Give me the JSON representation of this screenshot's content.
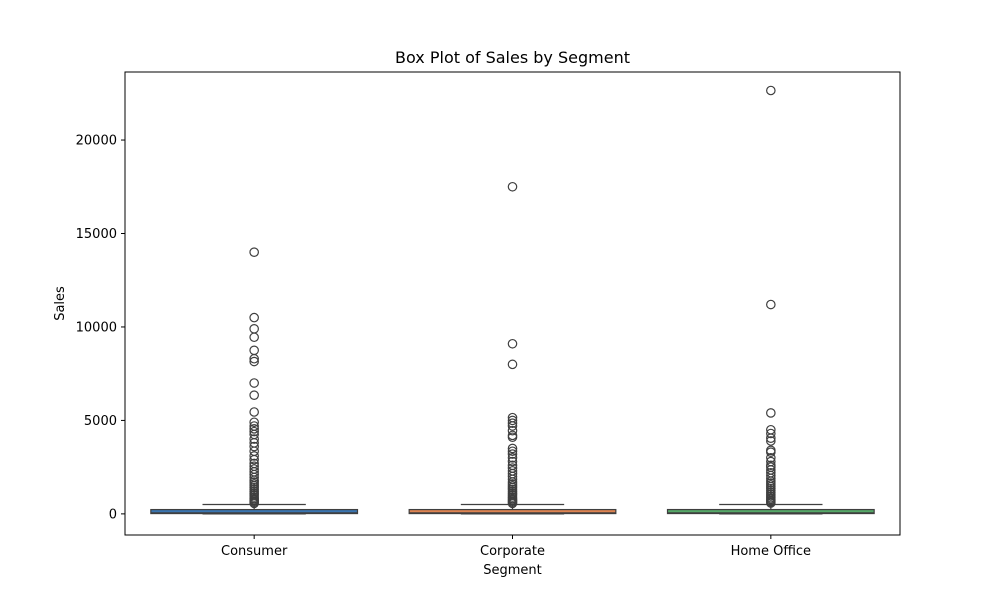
{
  "chart_data": {
    "type": "box",
    "title": "Box Plot of Sales by Segment",
    "xlabel": "Segment",
    "ylabel": "Sales",
    "ylim": [
      -1130,
      23640
    ],
    "yticks": [
      0,
      5000,
      10000,
      15000,
      20000
    ],
    "grid": false,
    "legend": "none",
    "categories": [
      "Consumer",
      "Corporate",
      "Home Office"
    ],
    "colors": [
      "#3a75b0",
      "#dd8452",
      "#55a868"
    ],
    "series": [
      {
        "category": "Consumer",
        "whisker_low": 0,
        "q1": 17,
        "median": 54,
        "q3": 210,
        "whisker_high": 500,
        "outliers": [
          14000,
          10500,
          9900,
          9450,
          8750,
          8300,
          8150,
          7000,
          6350,
          5450,
          4900,
          4700,
          4550,
          4400,
          4250,
          4000,
          3800,
          3600,
          3350,
          3100,
          2900,
          2700,
          2550,
          2400,
          2250,
          2100,
          1950,
          1800,
          1700,
          1600,
          1500,
          1400,
          1300,
          1200,
          1100,
          1000,
          900,
          820,
          750,
          680,
          620,
          560
        ]
      },
      {
        "category": "Corporate",
        "whisker_low": 0,
        "q1": 17,
        "median": 54,
        "q3": 220,
        "whisker_high": 500,
        "outliers": [
          17500,
          9100,
          8000,
          5150,
          5000,
          4850,
          4700,
          4450,
          4200,
          4100,
          3500,
          3350,
          3200,
          3000,
          2800,
          2600,
          2450,
          2300,
          2150,
          2000,
          1850,
          1700,
          1600,
          1500,
          1400,
          1300,
          1200,
          1100,
          1000,
          900,
          820,
          750,
          680,
          620,
          560
        ]
      },
      {
        "category": "Home Office",
        "whisker_low": 0,
        "q1": 18,
        "median": 57,
        "q3": 225,
        "whisker_high": 500,
        "outliers": [
          22650,
          11200,
          5400,
          4500,
          4300,
          4050,
          3900,
          3400,
          3300,
          3000,
          2800,
          2600,
          2500,
          2350,
          2200,
          2050,
          1900,
          1750,
          1650,
          1550,
          1450,
          1350,
          1250,
          1150,
          1050,
          950,
          860,
          780,
          700,
          640,
          580
        ]
      }
    ]
  }
}
